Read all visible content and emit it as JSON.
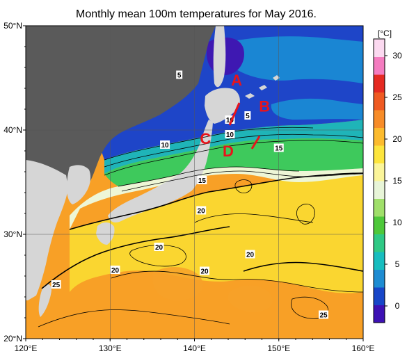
{
  "title": "Monthly mean 100m temperatures for May 2016.",
  "colorbar": {
    "unit": "[°C]",
    "ticks": [
      "30",
      "25",
      "20",
      "15",
      "10",
      "5",
      "0"
    ],
    "tick_values": [
      30,
      25,
      20,
      15,
      10,
      5,
      0
    ],
    "range": [
      -2,
      32
    ],
    "colors": [
      "#3d11b4",
      "#1846c8",
      "#1e8cd2",
      "#17bdbf",
      "#2fc985",
      "#4ec83a",
      "#a0df6a",
      "#e8f5d8",
      "#fbf59a",
      "#fde53d",
      "#fcbb2e",
      "#f78c28",
      "#ef5a22",
      "#e52a22",
      "#f47cc0",
      "#fbd9f0"
    ]
  },
  "axes": {
    "x_ticks": [
      "120°E",
      "130°E",
      "140°E",
      "150°E",
      "160°E"
    ],
    "x_values": [
      120,
      130,
      140,
      150,
      160
    ],
    "y_ticks": [
      "50°N",
      "40°N",
      "30°N",
      "20°N"
    ],
    "y_values": [
      50,
      40,
      30,
      20
    ],
    "lon_range": [
      120,
      160
    ],
    "lat_range": [
      20,
      50
    ]
  },
  "colors": {
    "land": "#5a5a5a",
    "land_light": "#d6d6d6",
    "marker_red": "#e8141b"
  },
  "contour_labels": [
    {
      "text": "5",
      "lon": 138.2,
      "lat": 45.3
    },
    {
      "text": "5",
      "lon": 146.3,
      "lat": 41.4
    },
    {
      "text": "10",
      "lon": 136.5,
      "lat": 38.6
    },
    {
      "text": "10",
      "lon": 144.2,
      "lat": 41.0
    },
    {
      "text": "10",
      "lon": 144.2,
      "lat": 39.6
    },
    {
      "text": "15",
      "lon": 150.0,
      "lat": 38.3
    },
    {
      "text": "15",
      "lon": 140.9,
      "lat": 35.2
    },
    {
      "text": "20",
      "lon": 140.8,
      "lat": 32.3
    },
    {
      "text": "20",
      "lon": 135.8,
      "lat": 28.8
    },
    {
      "text": "20",
      "lon": 146.6,
      "lat": 28.1
    },
    {
      "text": "20",
      "lon": 130.6,
      "lat": 26.6
    },
    {
      "text": "20",
      "lon": 141.2,
      "lat": 26.5
    },
    {
      "text": "25",
      "lon": 123.6,
      "lat": 25.2
    },
    {
      "text": "25",
      "lon": 155.3,
      "lat": 22.3
    }
  ],
  "section_markers": [
    {
      "label": "A",
      "lon": 145.0,
      "lat": 44.8
    },
    {
      "label": "B",
      "lon": 148.3,
      "lat": 42.3
    },
    {
      "label": "C",
      "lon": 141.3,
      "lat": 39.2
    },
    {
      "label": "D",
      "lon": 144.0,
      "lat": 38.0
    }
  ]
}
